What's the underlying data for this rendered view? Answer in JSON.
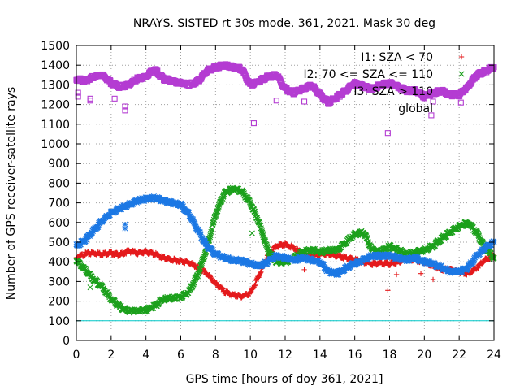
{
  "chart_data": {
    "type": "scatter",
    "title": "NRAYS. SISTED rt 30s mode. 361, 2021. Mask 30 deg",
    "xlabel": "GPS time [hours of doy 361, 2021]",
    "ylabel": "Number of GPS receiver-satellite rays",
    "xlim": [
      0,
      24
    ],
    "ylim": [
      0,
      1500
    ],
    "xticks": [
      "0",
      "2",
      "4",
      "6",
      "8",
      "10",
      "12",
      "14",
      "16",
      "18",
      "20",
      "22",
      "24"
    ],
    "yticks": [
      "0",
      "100",
      "200",
      "300",
      "400",
      "500",
      "600",
      "700",
      "800",
      "900",
      "1000",
      "1100",
      "1200",
      "1300",
      "1400",
      "1500"
    ],
    "grid": true,
    "legend_position": "top-right",
    "reference_line": {
      "y": 100,
      "color": "#00c8c8"
    },
    "series": [
      {
        "name": "I1: SZA < 70",
        "marker": "+",
        "color": "#e41a1c",
        "points": [
          [
            0,
            420
          ],
          [
            0.5,
            440
          ],
          [
            1,
            445
          ],
          [
            1.5,
            440
          ],
          [
            2,
            445
          ],
          [
            2.5,
            435
          ],
          [
            3,
            455
          ],
          [
            3.5,
            445
          ],
          [
            4,
            450
          ],
          [
            4.5,
            440
          ],
          [
            5,
            420
          ],
          [
            5.5,
            410
          ],
          [
            6,
            405
          ],
          [
            6.5,
            395
          ],
          [
            7,
            370
          ],
          [
            7.5,
            340
          ],
          [
            8,
            290
          ],
          [
            8.5,
            250
          ],
          [
            9,
            230
          ],
          [
            9.5,
            225
          ],
          [
            10,
            240
          ],
          [
            10.5,
            330
          ],
          [
            11,
            430
          ],
          [
            11.5,
            480
          ],
          [
            12,
            490
          ],
          [
            12.5,
            470
          ],
          [
            13,
            440
          ],
          [
            13.5,
            430
          ],
          [
            14,
            440
          ],
          [
            14.5,
            440
          ],
          [
            15,
            430
          ],
          [
            15.5,
            420
          ],
          [
            16,
            410
          ],
          [
            16.5,
            400
          ],
          [
            17,
            390
          ],
          [
            17.5,
            395
          ],
          [
            18,
            390
          ],
          [
            18.5,
            400
          ],
          [
            19,
            415
          ],
          [
            19.5,
            410
          ],
          [
            20,
            400
          ],
          [
            20.5,
            380
          ],
          [
            21,
            360
          ],
          [
            21.5,
            360
          ],
          [
            22,
            350
          ],
          [
            22.5,
            340
          ],
          [
            23,
            370
          ],
          [
            23.5,
            410
          ],
          [
            24,
            430
          ]
        ],
        "outliers": [
          [
            13.1,
            360
          ],
          [
            17.9,
            255
          ],
          [
            18.4,
            335
          ],
          [
            20.5,
            310
          ],
          [
            19.8,
            340
          ]
        ]
      },
      {
        "name": "I2: 70 <= SZA <= 110",
        "marker": "x",
        "color": "#1ca01c",
        "points": [
          [
            0,
            410
          ],
          [
            0.5,
            360
          ],
          [
            1,
            310
          ],
          [
            1.5,
            270
          ],
          [
            2,
            210
          ],
          [
            2.5,
            170
          ],
          [
            3,
            150
          ],
          [
            3.5,
            150
          ],
          [
            4,
            155
          ],
          [
            4.5,
            175
          ],
          [
            5,
            210
          ],
          [
            5.5,
            215
          ],
          [
            6,
            220
          ],
          [
            6.5,
            250
          ],
          [
            7,
            340
          ],
          [
            7.5,
            470
          ],
          [
            8,
            640
          ],
          [
            8.5,
            750
          ],
          [
            9,
            770
          ],
          [
            9.5,
            760
          ],
          [
            10,
            700
          ],
          [
            10.5,
            600
          ],
          [
            11,
            460
          ],
          [
            11.5,
            400
          ],
          [
            12,
            400
          ],
          [
            12.5,
            420
          ],
          [
            13,
            450
          ],
          [
            13.5,
            460
          ],
          [
            14,
            450
          ],
          [
            14.5,
            460
          ],
          [
            15,
            460
          ],
          [
            15.5,
            500
          ],
          [
            16,
            540
          ],
          [
            16.5,
            550
          ],
          [
            17,
            460
          ],
          [
            17.5,
            450
          ],
          [
            18,
            480
          ],
          [
            18.5,
            460
          ],
          [
            19,
            440
          ],
          [
            19.5,
            450
          ],
          [
            20,
            460
          ],
          [
            20.5,
            480
          ],
          [
            21,
            520
          ],
          [
            21.5,
            550
          ],
          [
            22,
            580
          ],
          [
            22.5,
            600
          ],
          [
            23,
            550
          ],
          [
            23.5,
            470
          ],
          [
            24,
            420
          ]
        ],
        "outliers": [
          [
            0.8,
            270
          ],
          [
            10.1,
            545
          ]
        ]
      },
      {
        "name": "I3: SZA > 110",
        "marker": "*",
        "color": "#1c78e4",
        "points": [
          [
            0,
            480
          ],
          [
            0.5,
            510
          ],
          [
            1,
            560
          ],
          [
            1.5,
            610
          ],
          [
            2,
            650
          ],
          [
            2.5,
            670
          ],
          [
            3,
            690
          ],
          [
            3.5,
            710
          ],
          [
            4,
            720
          ],
          [
            4.5,
            725
          ],
          [
            5,
            710
          ],
          [
            5.5,
            700
          ],
          [
            6,
            690
          ],
          [
            6.5,
            640
          ],
          [
            7,
            560
          ],
          [
            7.5,
            480
          ],
          [
            8,
            440
          ],
          [
            8.5,
            420
          ],
          [
            9,
            410
          ],
          [
            9.5,
            405
          ],
          [
            10,
            390
          ],
          [
            10.5,
            380
          ],
          [
            11,
            400
          ],
          [
            11.5,
            430
          ],
          [
            12,
            420
          ],
          [
            12.5,
            410
          ],
          [
            13,
            420
          ],
          [
            13.5,
            410
          ],
          [
            14,
            400
          ],
          [
            14.5,
            350
          ],
          [
            15,
            340
          ],
          [
            15.5,
            370
          ],
          [
            16,
            390
          ],
          [
            16.5,
            410
          ],
          [
            17,
            430
          ],
          [
            17.5,
            430
          ],
          [
            18,
            430
          ],
          [
            18.5,
            420
          ],
          [
            19,
            410
          ],
          [
            19.5,
            420
          ],
          [
            20,
            400
          ],
          [
            20.5,
            390
          ],
          [
            21,
            370
          ],
          [
            21.5,
            350
          ],
          [
            22,
            350
          ],
          [
            22.5,
            370
          ],
          [
            23,
            430
          ],
          [
            23.5,
            470
          ],
          [
            24,
            500
          ]
        ],
        "outliers": [
          [
            2.8,
            590
          ],
          [
            2.8,
            570
          ]
        ]
      },
      {
        "name": "global",
        "marker": "square",
        "color": "#b43cd2",
        "points": [
          [
            0,
            1330
          ],
          [
            0.5,
            1320
          ],
          [
            1,
            1340
          ],
          [
            1.5,
            1350
          ],
          [
            2,
            1310
          ],
          [
            2.5,
            1290
          ],
          [
            3,
            1300
          ],
          [
            3.5,
            1330
          ],
          [
            4,
            1340
          ],
          [
            4.5,
            1380
          ],
          [
            5,
            1330
          ],
          [
            5.5,
            1320
          ],
          [
            6,
            1310
          ],
          [
            6.5,
            1300
          ],
          [
            7,
            1320
          ],
          [
            7.5,
            1370
          ],
          [
            8,
            1390
          ],
          [
            8.5,
            1400
          ],
          [
            9,
            1390
          ],
          [
            9.5,
            1380
          ],
          [
            10,
            1300
          ],
          [
            10.5,
            1320
          ],
          [
            11,
            1340
          ],
          [
            11.5,
            1350
          ],
          [
            12,
            1280
          ],
          [
            12.5,
            1260
          ],
          [
            13,
            1280
          ],
          [
            13.5,
            1300
          ],
          [
            14,
            1250
          ],
          [
            14.5,
            1210
          ],
          [
            15,
            1240
          ],
          [
            15.5,
            1270
          ],
          [
            16,
            1310
          ],
          [
            16.5,
            1290
          ],
          [
            17,
            1280
          ],
          [
            17.5,
            1300
          ],
          [
            18,
            1310
          ],
          [
            18.5,
            1290
          ],
          [
            19,
            1270
          ],
          [
            19.5,
            1270
          ],
          [
            20,
            1240
          ],
          [
            20.5,
            1260
          ],
          [
            21,
            1270
          ],
          [
            21.5,
            1250
          ],
          [
            22,
            1250
          ],
          [
            22.5,
            1290
          ],
          [
            23,
            1350
          ],
          [
            23.5,
            1370
          ],
          [
            24,
            1390
          ]
        ],
        "outliers": [
          [
            0.1,
            1240
          ],
          [
            0.1,
            1260
          ],
          [
            0.8,
            1220
          ],
          [
            0.8,
            1230
          ],
          [
            2.2,
            1230
          ],
          [
            2.8,
            1170
          ],
          [
            2.8,
            1190
          ],
          [
            10.2,
            1105
          ],
          [
            11.5,
            1220
          ],
          [
            13.1,
            1215
          ],
          [
            17.9,
            1055
          ],
          [
            20.4,
            1145
          ],
          [
            20.5,
            1215
          ],
          [
            22.1,
            1210
          ]
        ]
      }
    ]
  }
}
